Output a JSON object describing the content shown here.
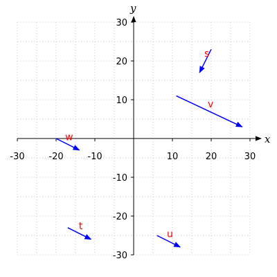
{
  "chart_data": {
    "type": "vector-field",
    "xlabel": "x",
    "ylabel": "y",
    "xlim": [
      -30,
      30
    ],
    "ylim": [
      -30,
      30
    ],
    "xticks": [
      -30,
      -20,
      -10,
      10,
      20,
      30
    ],
    "yticks": [
      -30,
      -20,
      -10,
      10,
      20,
      30
    ],
    "grid": true,
    "vector_color": "#0000ff",
    "label_color": "#ff0000",
    "vectors": [
      {
        "label": "s",
        "from": [
          20,
          23
        ],
        "to": [
          17,
          17
        ]
      },
      {
        "label": "v",
        "from": [
          11,
          11
        ],
        "to": [
          28,
          3
        ]
      },
      {
        "label": "w",
        "from": [
          -20,
          0
        ],
        "to": [
          -14,
          -3
        ]
      },
      {
        "label": "t",
        "from": [
          -17,
          -23
        ],
        "to": [
          -11,
          -26
        ]
      },
      {
        "label": "u",
        "from": [
          6,
          -25
        ],
        "to": [
          12,
          -28
        ]
      }
    ]
  }
}
